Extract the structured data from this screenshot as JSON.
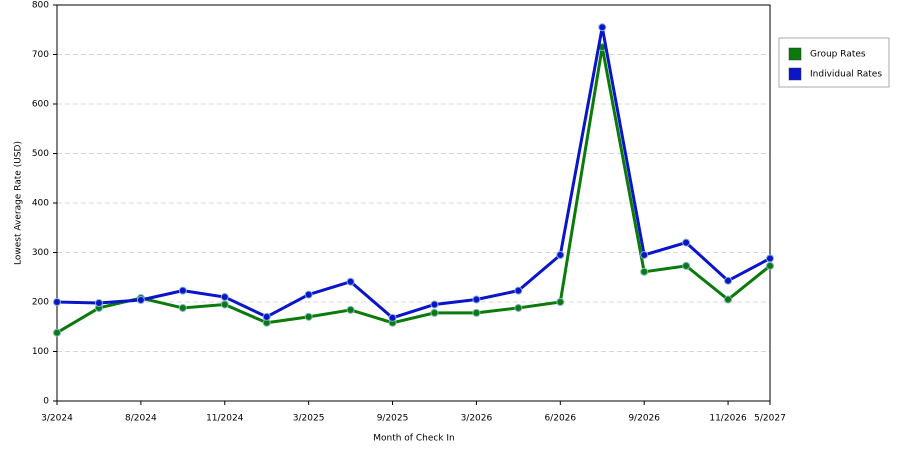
{
  "chart_data": {
    "type": "line",
    "x_label": "Month of Check In",
    "y_label": "Lowest Average Rate (USD)",
    "categories": [
      "3/2024",
      null,
      "8/2024",
      null,
      "11/2024",
      null,
      "3/2025",
      null,
      "9/2025",
      null,
      "3/2026",
      null,
      "6/2026",
      null,
      "9/2026",
      null,
      "11/2026",
      "5/2027"
    ],
    "series": [
      {
        "name": "Group Rates",
        "color": "#0a7a0a",
        "values": [
          138,
          188,
          208,
          188,
          195,
          158,
          170,
          184,
          158,
          178,
          178,
          188,
          200,
          715,
          261,
          273,
          205,
          273
        ]
      },
      {
        "name": "Individual Rates",
        "color": "#0a14c8",
        "values": [
          200,
          198,
          204,
          223,
          210,
          170,
          215,
          241,
          168,
          195,
          205,
          223,
          295,
          755,
          295,
          320,
          243,
          288
        ]
      }
    ],
    "ylim": [
      0,
      800
    ],
    "yticks": [
      0,
      100,
      200,
      300,
      400,
      500,
      600,
      700,
      800
    ],
    "grid": true,
    "legend": "right"
  }
}
